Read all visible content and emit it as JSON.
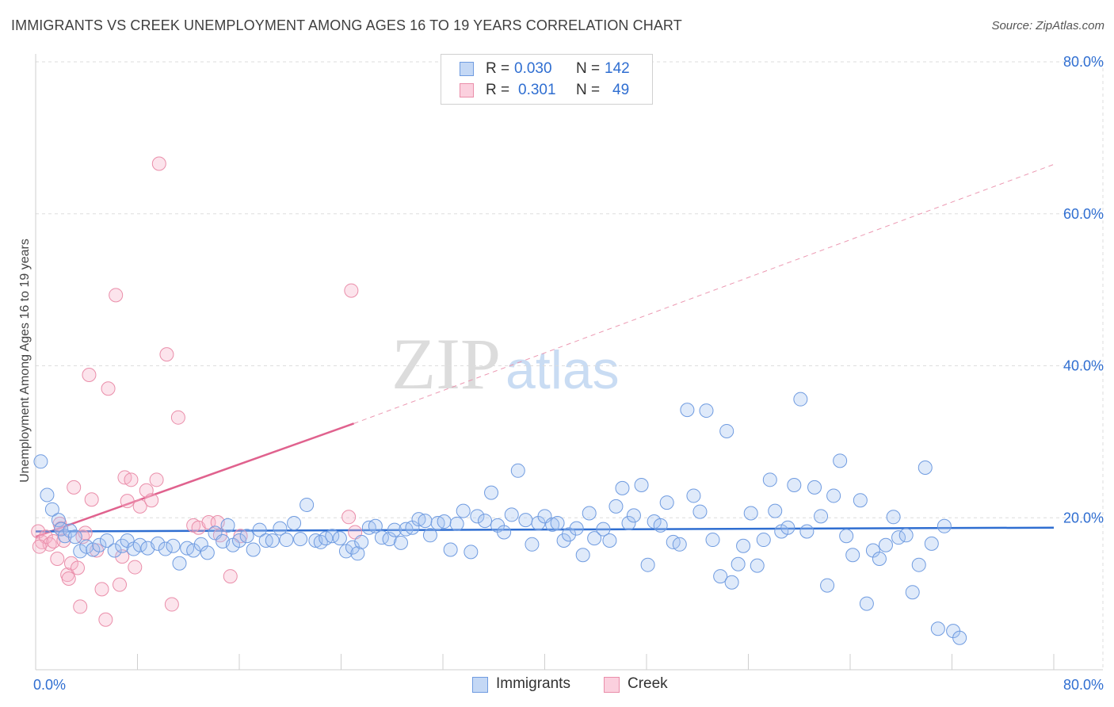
{
  "title": "IMMIGRANTS VS CREEK UNEMPLOYMENT AMONG AGES 16 TO 19 YEARS CORRELATION CHART",
  "source": "Source: ZipAtlas.com",
  "watermark": {
    "zip": "ZIP",
    "atlas": "atlas"
  },
  "stats": [
    {
      "r_label": "R =",
      "r_value": "0.030",
      "n_label": "N =",
      "n_value": "142"
    },
    {
      "r_label": "R =",
      "r_value": "0.301",
      "n_label": "N =",
      "n_value": "49"
    }
  ],
  "chart_data": {
    "type": "scatter",
    "title": "IMMIGRANTS VS CREEK UNEMPLOYMENT AMONG AGES 16 TO 19 YEARS CORRELATION CHART",
    "xlabel": "",
    "ylabel": "Unemployment Among Ages 16 to 19 years",
    "xlim": [
      0,
      80
    ],
    "ylim": [
      0,
      80
    ],
    "x_tick_labels": [
      "0.0%",
      "80.0%"
    ],
    "y_ticks": [
      20,
      40,
      60,
      80
    ],
    "y_tick_labels": [
      "20.0%",
      "40.0%",
      "60.0%",
      "80.0%"
    ],
    "colors": {
      "immigrants": "#6f9be0",
      "immigrants_line": "#2f6ed1",
      "creek": "#ea8eaa",
      "creek_line": "#e0628e",
      "tick_text": "#2f6ed1"
    },
    "series": [
      {
        "name": "Immigrants",
        "trend": {
          "x0": 0,
          "y0": 18.2,
          "x1": 80,
          "y1": 18.7
        },
        "points": [
          [
            0.4,
            27.4
          ],
          [
            0.9,
            23.0
          ],
          [
            1.3,
            21.1
          ],
          [
            1.8,
            19.7
          ],
          [
            2.0,
            18.5
          ],
          [
            2.3,
            17.6
          ],
          [
            2.7,
            18.3
          ],
          [
            3.1,
            17.5
          ],
          [
            3.5,
            15.6
          ],
          [
            4.0,
            16.2
          ],
          [
            4.5,
            15.8
          ],
          [
            5.0,
            16.4
          ],
          [
            5.6,
            17.0
          ],
          [
            6.2,
            15.7
          ],
          [
            6.8,
            16.3
          ],
          [
            7.2,
            17.0
          ],
          [
            7.7,
            15.9
          ],
          [
            8.2,
            16.4
          ],
          [
            8.8,
            16.0
          ],
          [
            9.6,
            16.6
          ],
          [
            10.2,
            15.9
          ],
          [
            10.8,
            16.3
          ],
          [
            11.3,
            14.0
          ],
          [
            11.9,
            16.0
          ],
          [
            12.4,
            15.7
          ],
          [
            13.0,
            16.5
          ],
          [
            13.5,
            15.4
          ],
          [
            14.1,
            18.0
          ],
          [
            14.7,
            16.9
          ],
          [
            15.1,
            19.0
          ],
          [
            15.5,
            16.4
          ],
          [
            16.0,
            17.0
          ],
          [
            16.6,
            17.6
          ],
          [
            17.1,
            15.8
          ],
          [
            17.6,
            18.4
          ],
          [
            18.1,
            17.0
          ],
          [
            18.6,
            17.0
          ],
          [
            19.2,
            18.6
          ],
          [
            19.7,
            17.1
          ],
          [
            20.3,
            19.3
          ],
          [
            20.8,
            17.2
          ],
          [
            21.3,
            21.7
          ],
          [
            22.0,
            17.0
          ],
          [
            22.4,
            16.8
          ],
          [
            22.8,
            17.3
          ],
          [
            23.3,
            17.6
          ],
          [
            23.9,
            17.3
          ],
          [
            24.4,
            15.6
          ],
          [
            24.9,
            16.1
          ],
          [
            25.3,
            15.3
          ],
          [
            25.6,
            16.8
          ],
          [
            26.2,
            18.7
          ],
          [
            26.7,
            18.9
          ],
          [
            27.2,
            17.4
          ],
          [
            27.8,
            17.2
          ],
          [
            28.2,
            18.4
          ],
          [
            28.7,
            16.7
          ],
          [
            29.1,
            18.5
          ],
          [
            29.6,
            18.7
          ],
          [
            30.1,
            19.8
          ],
          [
            30.6,
            19.6
          ],
          [
            31.0,
            17.7
          ],
          [
            31.6,
            19.3
          ],
          [
            32.1,
            19.5
          ],
          [
            32.6,
            15.8
          ],
          [
            33.1,
            19.2
          ],
          [
            33.6,
            20.9
          ],
          [
            34.2,
            15.5
          ],
          [
            34.7,
            20.2
          ],
          [
            35.3,
            19.6
          ],
          [
            35.8,
            23.3
          ],
          [
            36.3,
            19.0
          ],
          [
            36.8,
            18.1
          ],
          [
            37.4,
            20.4
          ],
          [
            37.9,
            26.2
          ],
          [
            38.5,
            19.7
          ],
          [
            39.0,
            16.5
          ],
          [
            39.5,
            19.3
          ],
          [
            40.0,
            20.2
          ],
          [
            40.6,
            19.1
          ],
          [
            41.0,
            19.3
          ],
          [
            41.5,
            17.0
          ],
          [
            41.9,
            17.8
          ],
          [
            42.5,
            18.6
          ],
          [
            43.0,
            15.1
          ],
          [
            43.5,
            20.6
          ],
          [
            43.9,
            17.3
          ],
          [
            44.6,
            18.5
          ],
          [
            45.1,
            17.0
          ],
          [
            45.6,
            21.5
          ],
          [
            46.1,
            23.9
          ],
          [
            46.6,
            19.3
          ],
          [
            47.0,
            20.3
          ],
          [
            47.6,
            24.3
          ],
          [
            48.1,
            13.8
          ],
          [
            48.6,
            19.5
          ],
          [
            49.1,
            19.0
          ],
          [
            49.6,
            22.0
          ],
          [
            50.1,
            16.8
          ],
          [
            50.6,
            16.5
          ],
          [
            51.2,
            34.2
          ],
          [
            51.7,
            22.9
          ],
          [
            52.2,
            20.8
          ],
          [
            52.7,
            34.1
          ],
          [
            53.2,
            17.1
          ],
          [
            53.8,
            12.3
          ],
          [
            54.3,
            31.4
          ],
          [
            54.7,
            11.5
          ],
          [
            55.2,
            13.9
          ],
          [
            55.6,
            16.3
          ],
          [
            56.2,
            20.6
          ],
          [
            56.7,
            13.7
          ],
          [
            57.2,
            17.1
          ],
          [
            57.7,
            25.0
          ],
          [
            58.1,
            20.9
          ],
          [
            58.6,
            18.2
          ],
          [
            59.1,
            18.7
          ],
          [
            59.6,
            24.3
          ],
          [
            60.1,
            35.6
          ],
          [
            60.6,
            18.2
          ],
          [
            61.2,
            24.0
          ],
          [
            61.7,
            20.2
          ],
          [
            62.2,
            11.1
          ],
          [
            62.7,
            22.9
          ],
          [
            63.2,
            27.5
          ],
          [
            63.7,
            17.6
          ],
          [
            64.2,
            15.1
          ],
          [
            64.8,
            22.3
          ],
          [
            65.3,
            8.7
          ],
          [
            65.8,
            15.7
          ],
          [
            66.3,
            14.6
          ],
          [
            66.8,
            16.4
          ],
          [
            67.4,
            20.1
          ],
          [
            67.8,
            17.4
          ],
          [
            68.4,
            17.7
          ],
          [
            68.9,
            10.2
          ],
          [
            69.4,
            13.8
          ],
          [
            69.9,
            26.6
          ],
          [
            70.4,
            16.6
          ],
          [
            70.9,
            5.4
          ],
          [
            71.4,
            18.9
          ],
          [
            72.1,
            5.1
          ],
          [
            72.6,
            4.2
          ]
        ]
      },
      {
        "name": "Creek",
        "trend": {
          "x0": 0,
          "y0": 17.5,
          "x1": 25.0,
          "y1": 32.4
        },
        "trend_dashed": {
          "x0": 25.0,
          "y0": 32.4,
          "x1": 80,
          "y1": 66.5
        },
        "points": [
          [
            0.2,
            18.2
          ],
          [
            0.5,
            16.8
          ],
          [
            0.8,
            17.5
          ],
          [
            1.1,
            16.5
          ],
          [
            1.4,
            16.9
          ],
          [
            1.7,
            14.6
          ],
          [
            1.9,
            19.2
          ],
          [
            2.2,
            17.0
          ],
          [
            2.5,
            12.5
          ],
          [
            2.6,
            12.0
          ],
          [
            2.8,
            14.0
          ],
          [
            3.0,
            24.0
          ],
          [
            3.3,
            13.4
          ],
          [
            3.5,
            8.3
          ],
          [
            3.7,
            17.5
          ],
          [
            3.9,
            18.0
          ],
          [
            4.2,
            38.8
          ],
          [
            4.4,
            22.4
          ],
          [
            4.8,
            15.7
          ],
          [
            5.2,
            10.6
          ],
          [
            5.5,
            6.6
          ],
          [
            5.7,
            37.0
          ],
          [
            6.3,
            49.3
          ],
          [
            6.6,
            11.2
          ],
          [
            6.8,
            14.9
          ],
          [
            7.0,
            25.3
          ],
          [
            7.2,
            22.2
          ],
          [
            7.5,
            25.0
          ],
          [
            7.8,
            13.5
          ],
          [
            8.2,
            21.5
          ],
          [
            8.7,
            23.6
          ],
          [
            9.1,
            22.3
          ],
          [
            9.5,
            25.0
          ],
          [
            9.7,
            66.6
          ],
          [
            10.3,
            41.5
          ],
          [
            10.7,
            8.6
          ],
          [
            11.2,
            33.2
          ],
          [
            12.4,
            19.0
          ],
          [
            12.8,
            18.7
          ],
          [
            13.6,
            19.4
          ],
          [
            14.3,
            19.4
          ],
          [
            14.5,
            17.7
          ],
          [
            15.3,
            12.3
          ],
          [
            16.1,
            17.6
          ],
          [
            24.6,
            20.1
          ],
          [
            24.8,
            49.9
          ],
          [
            25.1,
            18.1
          ],
          [
            0.3,
            16.2
          ],
          [
            2.0,
            18.6
          ]
        ]
      }
    ]
  },
  "legend": [
    {
      "label": "Immigrants"
    },
    {
      "label": "Creek"
    }
  ]
}
